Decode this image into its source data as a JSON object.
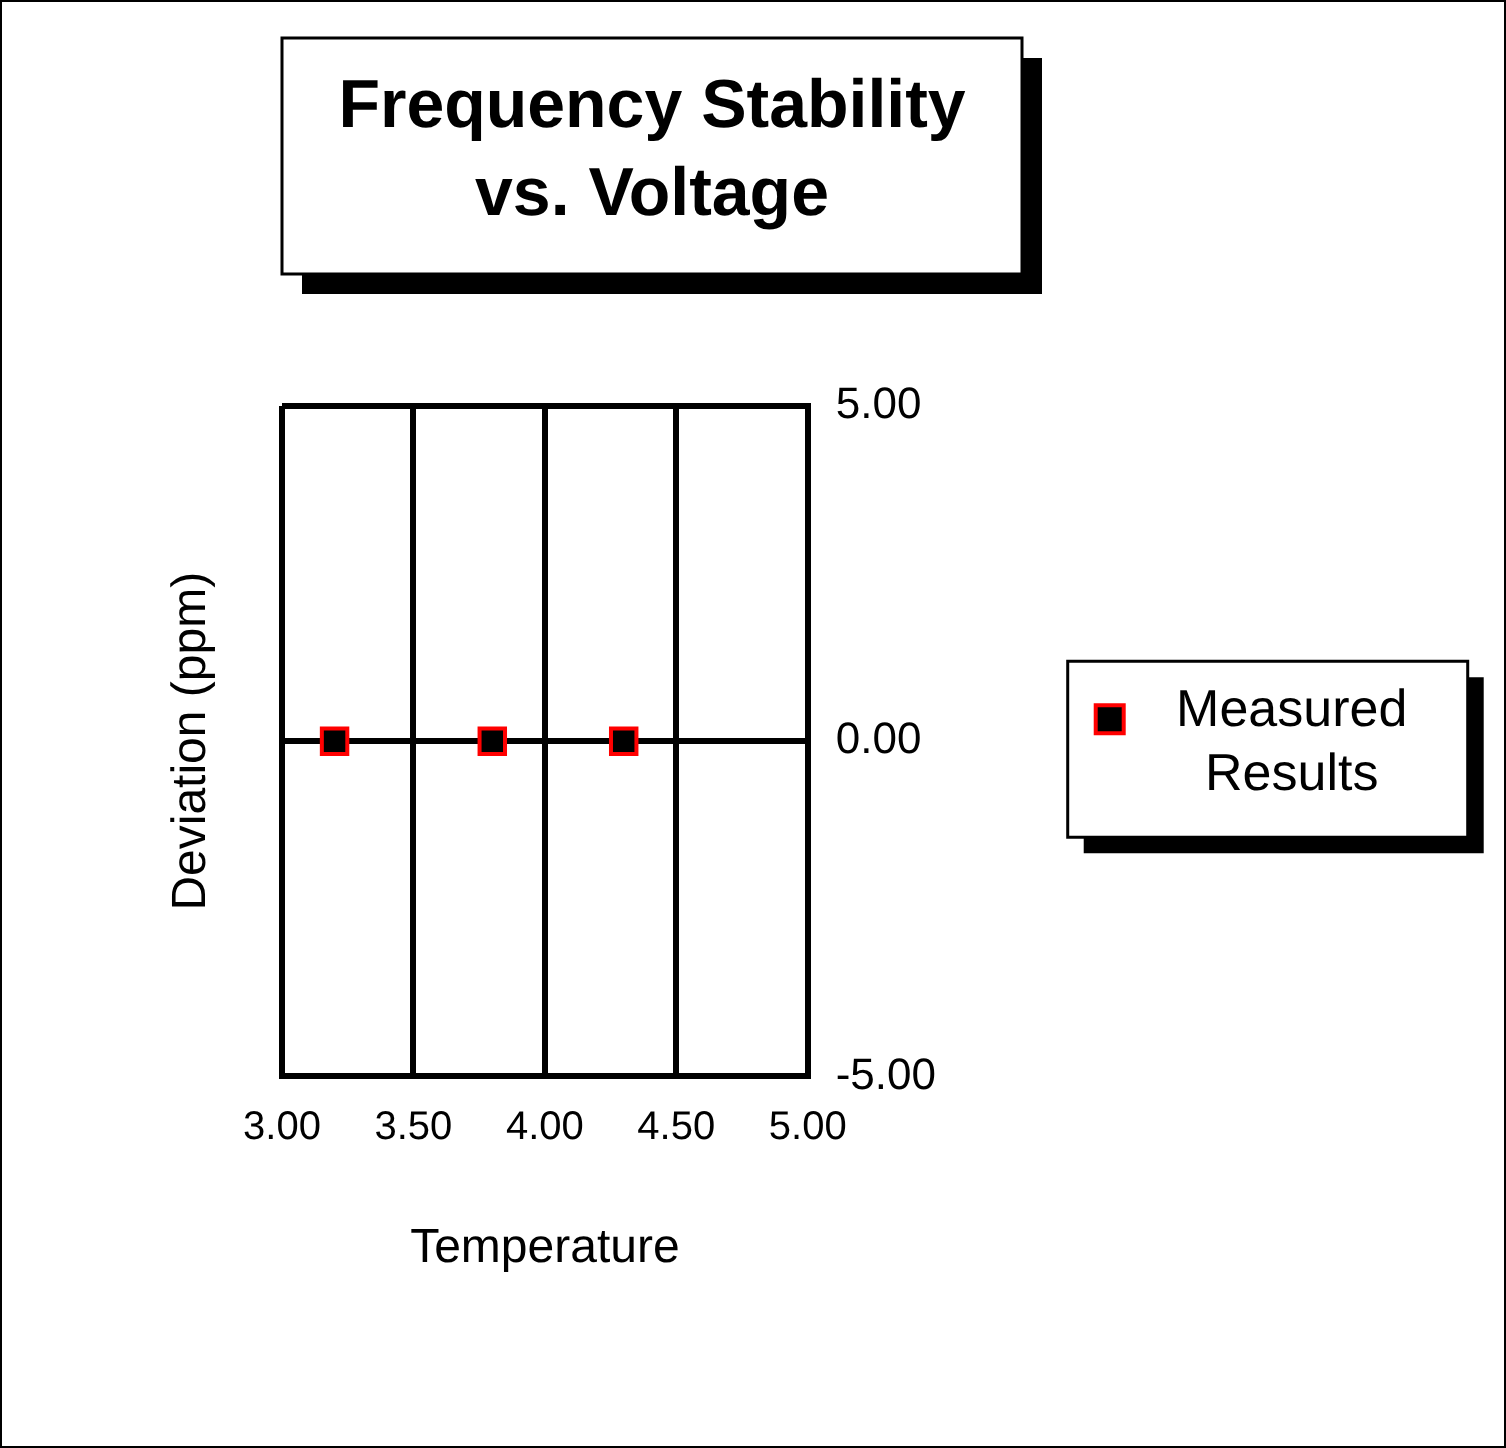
{
  "chart_data": {
    "type": "scatter",
    "title": "Frequency Stability vs. Voltage",
    "xlabel": "Temperature",
    "ylabel": "Deviation (ppm)",
    "series": [
      {
        "name": "Measured Results",
        "color": "#000000",
        "x": [
          3.2,
          3.8,
          4.3
        ],
        "values": [
          0,
          0,
          0
        ]
      }
    ],
    "xlim": [
      3,
      5
    ],
    "xticks": [
      {
        "value": 3,
        "label": "3.00"
      },
      {
        "value": 3.5,
        "label": "3.50"
      },
      {
        "value": 4,
        "label": "4.00"
      },
      {
        "value": 4.5,
        "label": "4.50"
      },
      {
        "value": 5,
        "label": "5.00"
      }
    ],
    "ylim": [
      -5,
      5
    ],
    "yticks": [
      {
        "value": -5,
        "label": "-5.00"
      },
      {
        "value": 0,
        "label": "0.00"
      },
      {
        "value": 5,
        "label": "5.00"
      }
    ],
    "grid": true,
    "legend": "right",
    "marker": "square"
  }
}
